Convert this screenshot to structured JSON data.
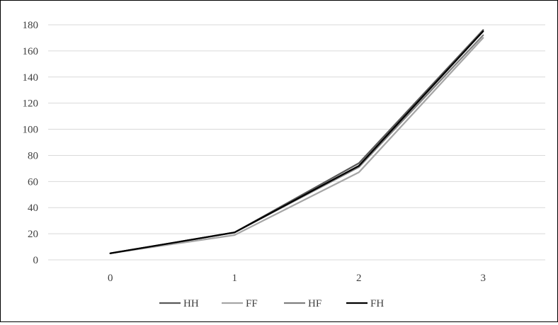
{
  "chart_data": {
    "type": "line",
    "x": [
      0,
      1,
      2,
      3
    ],
    "x_tick_labels": [
      "0",
      "1",
      "2",
      "3"
    ],
    "y_ticks": [
      0,
      20,
      40,
      60,
      80,
      100,
      120,
      140,
      160,
      180
    ],
    "ylim": [
      0,
      180
    ],
    "grid": "horizontal",
    "legend_position": "bottom",
    "series": [
      {
        "name": "HH",
        "values": [
          5,
          21,
          74,
          176
        ],
        "color": "#595959"
      },
      {
        "name": "FF",
        "values": [
          5,
          19,
          67,
          170
        ],
        "color": "#a6a6a6"
      },
      {
        "name": "HF",
        "values": [
          5,
          21,
          71,
          172
        ],
        "color": "#7f7f7f"
      },
      {
        "name": "FH",
        "values": [
          5,
          21,
          72,
          175
        ],
        "color": "#000000"
      }
    ],
    "grid_color": "#d9d9d9",
    "axis_color": "#d9d9d9",
    "text_color": "#404040"
  }
}
